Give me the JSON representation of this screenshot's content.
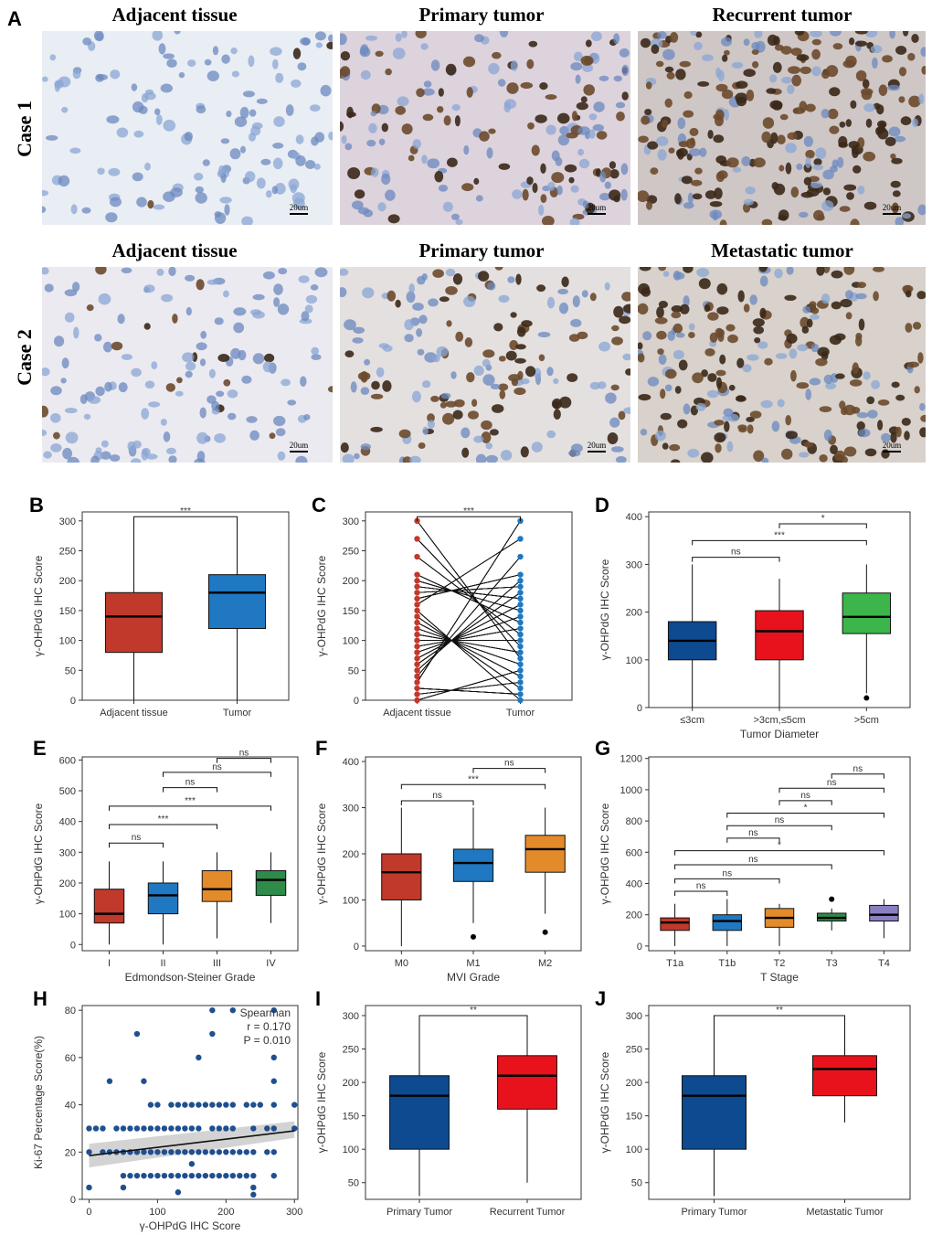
{
  "panel_letters": [
    "A",
    "B",
    "C",
    "D",
    "E",
    "F",
    "G",
    "H",
    "I",
    "J"
  ],
  "case_labels": [
    "Case 1",
    "Case 2"
  ],
  "micro_titles": [
    "Adjacent tissue",
    "Primary tumor",
    "Recurrent tumor",
    "Adjacent tissue",
    "Primary tumor",
    "Metastatic tumor"
  ],
  "scale_bar": "20um",
  "colors": {
    "adjacent": "#c0392b",
    "tumor": "#1f78c1",
    "navy": "#0d4a8f",
    "red": "#e8121c",
    "green": "#3cb54a",
    "orange": "#e38b2b",
    "darkgreen": "#2e8b4a",
    "purple": "#8b7fc1",
    "stain_blue": "#5d86c4",
    "stain_brown": "#3a2818"
  },
  "chart_data": [
    {
      "panel": "B",
      "type": "box",
      "ylabel": "γ-OHPdG IHC Score",
      "ylim": [
        0,
        315
      ],
      "yticks": [
        0,
        50,
        100,
        150,
        200,
        250,
        300
      ],
      "categories": [
        "Adjacent tissue",
        "Tumor"
      ],
      "boxes": [
        {
          "min": 0,
          "q1": 80,
          "median": 140,
          "q3": 180,
          "max": 300,
          "color": "#c0392b"
        },
        {
          "min": 0,
          "q1": 120,
          "median": 180,
          "q3": 210,
          "max": 300,
          "color": "#1f78c1"
        }
      ],
      "brackets": [
        {
          "from": 0,
          "to": 1,
          "y": 307,
          "label": "***"
        }
      ]
    },
    {
      "panel": "C",
      "type": "paired",
      "ylabel": "γ-OHPdG IHC Score",
      "ylim": [
        0,
        315
      ],
      "yticks": [
        0,
        50,
        100,
        150,
        200,
        250,
        300
      ],
      "categories": [
        "Adjacent tissue",
        "Tumor"
      ],
      "adjacent": [
        0,
        10,
        20,
        30,
        40,
        50,
        60,
        70,
        80,
        90,
        100,
        110,
        120,
        130,
        140,
        150,
        160,
        170,
        180,
        190,
        200,
        210,
        240,
        270,
        300
      ],
      "tumor": [
        0,
        10,
        20,
        30,
        40,
        50,
        60,
        70,
        80,
        90,
        100,
        110,
        120,
        130,
        140,
        150,
        160,
        170,
        180,
        190,
        200,
        210,
        240,
        270,
        300
      ],
      "brackets": [
        {
          "from": 0,
          "to": 1,
          "y": 307,
          "label": "***"
        }
      ]
    },
    {
      "panel": "D",
      "type": "box",
      "ylabel": "γ-OHPdG IHC Score",
      "xlabel": "Tumor Diameter",
      "ylim": [
        0,
        410
      ],
      "yticks": [
        0,
        100,
        200,
        300,
        400
      ],
      "categories": [
        "≤3cm",
        ">3cm,≤5cm",
        ">5cm"
      ],
      "boxes": [
        {
          "min": 0,
          "q1": 100,
          "median": 140,
          "q3": 180,
          "max": 300,
          "color": "#0d4a8f"
        },
        {
          "min": 0,
          "q1": 100,
          "median": 160,
          "q3": 203,
          "max": 270,
          "color": "#e8121c"
        },
        {
          "min": 30,
          "q1": 155,
          "median": 190,
          "q3": 240,
          "max": 300,
          "color": "#3cb54a",
          "outliers": [
            20
          ]
        }
      ],
      "brackets": [
        {
          "from": 0,
          "to": 1,
          "y": 315,
          "label": "ns"
        },
        {
          "from": 0,
          "to": 2,
          "y": 350,
          "label": "***"
        },
        {
          "from": 1,
          "to": 2,
          "y": 385,
          "label": "*"
        }
      ]
    },
    {
      "panel": "E",
      "type": "box",
      "ylabel": "γ-OHPdG IHC Score",
      "xlabel": "Edmondson-Steiner Grade",
      "ylim": [
        -20,
        610
      ],
      "yticks": [
        0,
        100,
        200,
        300,
        400,
        500,
        600
      ],
      "categories": [
        "I",
        "II",
        "III",
        "IV"
      ],
      "boxes": [
        {
          "min": 0,
          "q1": 70,
          "median": 100,
          "q3": 180,
          "max": 270,
          "color": "#c0392b"
        },
        {
          "min": 0,
          "q1": 100,
          "median": 160,
          "q3": 200,
          "max": 270,
          "color": "#1f78c1"
        },
        {
          "min": 20,
          "q1": 140,
          "median": 180,
          "q3": 240,
          "max": 300,
          "color": "#e38b2b"
        },
        {
          "min": 70,
          "q1": 160,
          "median": 210,
          "q3": 240,
          "max": 300,
          "color": "#2e8b4a"
        }
      ],
      "brackets": [
        {
          "from": 0,
          "to": 1,
          "y": 330,
          "label": "ns"
        },
        {
          "from": 0,
          "to": 2,
          "y": 390,
          "label": "***"
        },
        {
          "from": 0,
          "to": 3,
          "y": 450,
          "label": "***"
        },
        {
          "from": 1,
          "to": 2,
          "y": 510,
          "label": "ns"
        },
        {
          "from": 1,
          "to": 3,
          "y": 560,
          "label": "ns"
        },
        {
          "from": 2,
          "to": 3,
          "y": 605,
          "label": "ns"
        }
      ]
    },
    {
      "panel": "F",
      "type": "box",
      "ylabel": "γ-OHPdG IHC Score",
      "xlabel": "MVI Grade",
      "ylim": [
        -10,
        410
      ],
      "yticks": [
        0,
        100,
        200,
        300,
        400
      ],
      "categories": [
        "M0",
        "M1",
        "M2"
      ],
      "boxes": [
        {
          "min": 0,
          "q1": 100,
          "median": 160,
          "q3": 200,
          "max": 300,
          "color": "#c0392b"
        },
        {
          "min": 50,
          "q1": 140,
          "median": 180,
          "q3": 210,
          "max": 300,
          "color": "#1f78c1",
          "outliers": [
            20
          ]
        },
        {
          "min": 70,
          "q1": 160,
          "median": 210,
          "q3": 240,
          "max": 300,
          "color": "#e38b2b",
          "outliers": [
            30
          ]
        }
      ],
      "brackets": [
        {
          "from": 0,
          "to": 1,
          "y": 315,
          "label": "ns"
        },
        {
          "from": 0,
          "to": 2,
          "y": 350,
          "label": "***"
        },
        {
          "from": 1,
          "to": 2,
          "y": 385,
          "label": "ns"
        }
      ]
    },
    {
      "panel": "G",
      "type": "box",
      "ylabel": "γ-OHPdG IHC Score",
      "xlabel": "T Stage",
      "ylim": [
        -30,
        1210
      ],
      "yticks": [
        0,
        200,
        400,
        600,
        800,
        1000,
        1200
      ],
      "categories": [
        "T1a",
        "T1b",
        "T2",
        "T3",
        "T4"
      ],
      "boxes": [
        {
          "min": 0,
          "q1": 100,
          "median": 150,
          "q3": 180,
          "max": 270,
          "color": "#c0392b"
        },
        {
          "min": 0,
          "q1": 100,
          "median": 160,
          "q3": 200,
          "max": 300,
          "color": "#1f78c1"
        },
        {
          "min": 0,
          "q1": 120,
          "median": 180,
          "q3": 240,
          "max": 270,
          "color": "#e38b2b"
        },
        {
          "min": 100,
          "q1": 160,
          "median": 180,
          "q3": 210,
          "max": 240,
          "color": "#2e8b4a",
          "outliers": [
            300
          ]
        },
        {
          "min": 50,
          "q1": 160,
          "median": 200,
          "q3": 260,
          "max": 300,
          "color": "#8b7fc1"
        }
      ],
      "brackets": [
        {
          "from": 0,
          "to": 1,
          "y": 350,
          "label": "ns"
        },
        {
          "from": 0,
          "to": 2,
          "y": 430,
          "label": "ns"
        },
        {
          "from": 0,
          "to": 3,
          "y": 520,
          "label": "ns"
        },
        {
          "from": 0,
          "to": 4,
          "y": 610,
          "label": "*"
        },
        {
          "from": 1,
          "to": 2,
          "y": 690,
          "label": "ns"
        },
        {
          "from": 1,
          "to": 3,
          "y": 770,
          "label": "ns"
        },
        {
          "from": 1,
          "to": 4,
          "y": 850,
          "label": "*"
        },
        {
          "from": 2,
          "to": 3,
          "y": 930,
          "label": "ns"
        },
        {
          "from": 2,
          "to": 4,
          "y": 1010,
          "label": "ns"
        },
        {
          "from": 3,
          "to": 4,
          "y": 1100,
          "label": "ns"
        }
      ]
    },
    {
      "panel": "H",
      "type": "scatter",
      "xlabel": "γ-OHPdG IHC Score",
      "ylabel": "Ki-67 Percentage Score(%)",
      "xlim": [
        -10,
        305
      ],
      "ylim": [
        0,
        82
      ],
      "xticks": [
        0,
        100,
        200,
        300
      ],
      "yticks": [
        0,
        20,
        40,
        60,
        80
      ],
      "annotation": [
        "Spearman",
        "r = 0.170",
        "P = 0.010"
      ],
      "fit": {
        "x0": 0,
        "y0": 18.5,
        "x1": 300,
        "y1": 29
      },
      "points": [
        [
          0,
          5
        ],
        [
          0,
          20
        ],
        [
          0,
          30
        ],
        [
          10,
          30
        ],
        [
          20,
          20
        ],
        [
          20,
          30
        ],
        [
          30,
          50
        ],
        [
          30,
          20
        ],
        [
          40,
          20
        ],
        [
          40,
          30
        ],
        [
          50,
          30
        ],
        [
          50,
          20
        ],
        [
          50,
          10
        ],
        [
          50,
          5
        ],
        [
          60,
          30
        ],
        [
          60,
          20
        ],
        [
          60,
          10
        ],
        [
          70,
          70
        ],
        [
          70,
          30
        ],
        [
          70,
          20
        ],
        [
          70,
          10
        ],
        [
          80,
          30
        ],
        [
          80,
          20
        ],
        [
          80,
          10
        ],
        [
          80,
          50
        ],
        [
          90,
          30
        ],
        [
          90,
          20
        ],
        [
          90,
          10
        ],
        [
          90,
          40
        ],
        [
          100,
          40
        ],
        [
          100,
          20
        ],
        [
          100,
          10
        ],
        [
          100,
          30
        ],
        [
          110,
          30
        ],
        [
          110,
          20
        ],
        [
          110,
          10
        ],
        [
          120,
          40
        ],
        [
          120,
          20
        ],
        [
          120,
          10
        ],
        [
          120,
          30
        ],
        [
          130,
          3
        ],
        [
          130,
          40
        ],
        [
          130,
          20
        ],
        [
          130,
          10
        ],
        [
          130,
          30
        ],
        [
          140,
          40
        ],
        [
          140,
          20
        ],
        [
          140,
          10
        ],
        [
          140,
          30
        ],
        [
          150,
          15
        ],
        [
          150,
          40
        ],
        [
          150,
          20
        ],
        [
          150,
          10
        ],
        [
          150,
          30
        ],
        [
          160,
          60
        ],
        [
          160,
          40
        ],
        [
          160,
          20
        ],
        [
          160,
          10
        ],
        [
          160,
          30
        ],
        [
          170,
          40
        ],
        [
          170,
          20
        ],
        [
          170,
          10
        ],
        [
          180,
          80
        ],
        [
          180,
          70
        ],
        [
          180,
          40
        ],
        [
          180,
          20
        ],
        [
          180,
          10
        ],
        [
          180,
          30
        ],
        [
          190,
          40
        ],
        [
          190,
          20
        ],
        [
          190,
          10
        ],
        [
          190,
          30
        ],
        [
          200,
          40
        ],
        [
          200,
          20
        ],
        [
          200,
          10
        ],
        [
          200,
          30
        ],
        [
          210,
          80
        ],
        [
          210,
          40
        ],
        [
          210,
          20
        ],
        [
          210,
          10
        ],
        [
          210,
          30
        ],
        [
          220,
          20
        ],
        [
          220,
          10
        ],
        [
          230,
          40
        ],
        [
          230,
          20
        ],
        [
          230,
          10
        ],
        [
          240,
          5
        ],
        [
          240,
          2
        ],
        [
          240,
          30
        ],
        [
          240,
          20
        ],
        [
          240,
          10
        ],
        [
          240,
          40
        ],
        [
          250,
          40
        ],
        [
          260,
          30
        ],
        [
          260,
          20
        ],
        [
          270,
          80
        ],
        [
          270,
          60
        ],
        [
          270,
          40
        ],
        [
          270,
          30
        ],
        [
          270,
          20
        ],
        [
          270,
          10
        ],
        [
          270,
          50
        ],
        [
          300,
          30
        ],
        [
          300,
          40
        ]
      ]
    },
    {
      "panel": "I",
      "type": "box",
      "ylabel": "γ-OHPdG IHC Score",
      "ylim": [
        25,
        315
      ],
      "yticks": [
        50,
        100,
        150,
        200,
        250,
        300
      ],
      "categories": [
        "Primary Tumor",
        "Recurrent Tumor"
      ],
      "boxes": [
        {
          "min": 30,
          "q1": 100,
          "median": 180,
          "q3": 210,
          "max": 300,
          "color": "#0d4a8f"
        },
        {
          "min": 50,
          "q1": 160,
          "median": 210,
          "q3": 240,
          "max": 300,
          "color": "#e8121c"
        }
      ],
      "brackets": [
        {
          "from": 0,
          "to": 1,
          "y": 300,
          "label": "**"
        }
      ]
    },
    {
      "panel": "J",
      "type": "box",
      "ylabel": "γ-OHPdG IHC Score",
      "ylim": [
        25,
        315
      ],
      "yticks": [
        50,
        100,
        150,
        200,
        250,
        300
      ],
      "categories": [
        "Primary Tumor",
        "Metastatic Tumor"
      ],
      "boxes": [
        {
          "min": 30,
          "q1": 100,
          "median": 180,
          "q3": 210,
          "max": 300,
          "color": "#0d4a8f"
        },
        {
          "min": 140,
          "q1": 180,
          "median": 220,
          "q3": 240,
          "max": 300,
          "color": "#e8121c"
        }
      ],
      "brackets": [
        {
          "from": 0,
          "to": 1,
          "y": 300,
          "label": "**"
        }
      ]
    }
  ]
}
